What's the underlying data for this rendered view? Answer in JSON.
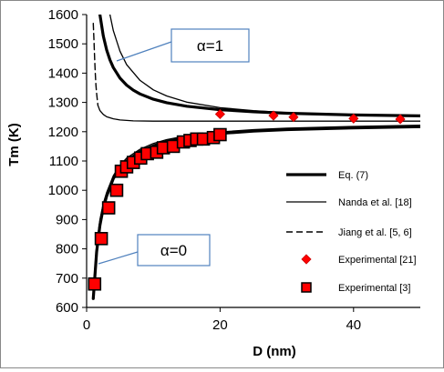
{
  "chart_data": {
    "type": "line",
    "xlabel": "D (nm)",
    "ylabel": "Tm (K)",
    "xlim": [
      0,
      50
    ],
    "ylim": [
      600,
      1600
    ],
    "x_ticks": [
      0,
      20,
      40
    ],
    "y_ticks": [
      600,
      700,
      800,
      900,
      1000,
      1100,
      1200,
      1300,
      1400,
      1500,
      1600
    ],
    "grid": false,
    "legend_position": "lower-right",
    "series": [
      {
        "name": "Eq. (7)",
        "style": "thick-solid",
        "x": [
          2,
          2.5,
          3,
          3.5,
          4,
          5,
          6,
          7,
          8,
          10,
          12,
          15,
          20,
          25,
          30,
          40,
          50
        ],
        "y": [
          1600,
          1527,
          1479,
          1445,
          1419,
          1383,
          1359,
          1342,
          1329,
          1311,
          1299,
          1287,
          1275,
          1268,
          1263,
          1257,
          1254
        ]
      },
      {
        "name": "Nanda et al. [18]",
        "style": "thin-solid",
        "x": [
          3.5,
          4,
          5,
          6,
          8,
          10,
          12,
          15,
          20,
          25,
          30,
          40,
          50
        ],
        "y": [
          1600,
          1545,
          1475,
          1429,
          1375,
          1343,
          1322,
          1301,
          1282,
          1272,
          1265,
          1257,
          1253
        ]
      },
      {
        "name": "Jiang et al. [5, 6]",
        "style": "dashed",
        "x": [
          1.0,
          1.1,
          1.2,
          1.3,
          1.4,
          1.5,
          1.6,
          1.7
        ],
        "y": [
          1570,
          1510,
          1450,
          1400,
          1360,
          1330,
          1310,
          1290
        ]
      },
      {
        "name": "",
        "style": "thin-solid",
        "x": [
          1.7,
          2,
          2.5,
          3,
          4,
          5,
          7,
          10,
          15,
          20,
          30,
          40,
          50
        ],
        "y": [
          1290,
          1272,
          1259,
          1251,
          1244,
          1240,
          1237,
          1236,
          1236,
          1236,
          1236,
          1236,
          1236
        ]
      },
      {
        "name": "",
        "style": "thick-solid",
        "x": [
          1,
          1.5,
          2,
          2.5,
          3,
          4,
          5,
          6,
          8,
          10,
          12,
          15,
          20,
          25,
          30,
          40,
          50
        ],
        "y": [
          630,
          790,
          880,
          940,
          980,
          1040,
          1075,
          1100,
          1132,
          1152,
          1166,
          1180,
          1194,
          1202,
          1207,
          1213,
          1217
        ]
      },
      {
        "name": "",
        "style": "thin-solid",
        "x": [
          1,
          1.5,
          2,
          2.5,
          3,
          4,
          5,
          6,
          8,
          10,
          12,
          15,
          20,
          25,
          30,
          40,
          50
        ],
        "y": [
          660,
          815,
          900,
          955,
          993,
          1050,
          1085,
          1110,
          1140,
          1160,
          1173,
          1186,
          1199,
          1207,
          1212,
          1218,
          1222
        ]
      },
      {
        "name": "Experimental [21]",
        "style": "diamond",
        "x": [
          20,
          28,
          31,
          40,
          47
        ],
        "y": [
          1260,
          1255,
          1250,
          1245,
          1243
        ]
      },
      {
        "name": "Experimental [3]",
        "style": "square",
        "x": [
          1.2,
          2.2,
          3.3,
          4.5,
          5.2,
          6.0,
          7.0,
          8.1,
          9.1,
          10.5,
          11.5,
          13.0,
          14.5,
          15.5,
          16.5,
          17.5,
          19.0,
          20.0
        ],
        "y": [
          680,
          835,
          940,
          1000,
          1065,
          1080,
          1095,
          1110,
          1125,
          1130,
          1145,
          1150,
          1165,
          1170,
          1175,
          1175,
          1180,
          1190
        ]
      }
    ],
    "annotations": [
      {
        "text": "α=1",
        "x": 2.5,
        "y": 1400
      },
      {
        "text": "α=0",
        "x": 1.5,
        "y": 700
      }
    ],
    "colors": {
      "line": "#000000",
      "marker_fill": "#ff0000",
      "marker_stroke": "#cc0000",
      "callout_border": "#4f81bd",
      "callout_leader": "#4f81bd"
    }
  }
}
